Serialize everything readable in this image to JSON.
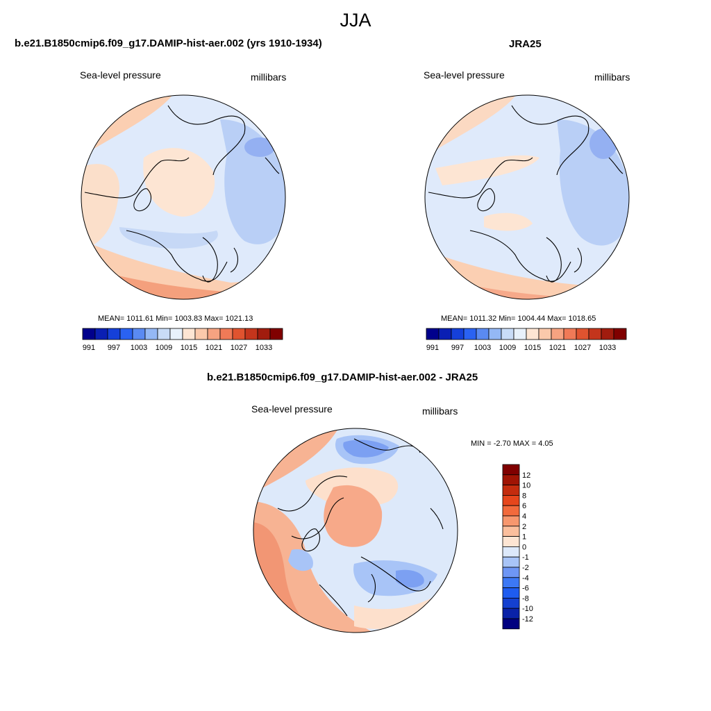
{
  "figure": {
    "season": "JJA"
  },
  "panels": [
    {
      "id": "model",
      "title": "b.e21.B1850cmip6.f09_g17.DAMIP-hist-aer.002 (yrs 1910-1934)",
      "left_label": "Sea-level pressure",
      "right_label": "millibars",
      "stats": "MEAN= 1011.61  Min= 1003.83  Max= 1021.13"
    },
    {
      "id": "obs",
      "title": "JRA25",
      "left_label": "Sea-level pressure",
      "right_label": "millibars",
      "stats": "MEAN= 1011.32  Min= 1004.44  Max= 1018.65"
    },
    {
      "id": "diff",
      "title": "b.e21.B1850cmip6.f09_g17.DAMIP-hist-aer.002 - JRA25",
      "left_label": "Sea-level pressure",
      "right_label": "millibars",
      "stats": "MIN =  -2.70 MAX =   4.05"
    }
  ],
  "colorbars": {
    "absolute": {
      "colors": [
        "#00008c",
        "#0a1fb3",
        "#1540d9",
        "#2a62f2",
        "#5a8af2",
        "#94b8f5",
        "#c9dcf7",
        "#e8f1fb",
        "#fde5d3",
        "#fbc9ab",
        "#f6a381",
        "#f07a57",
        "#e0532f",
        "#c4351c",
        "#a11c0e",
        "#800000"
      ],
      "tick_labels": [
        "991",
        "997",
        "1003",
        "1009",
        "1015",
        "1021",
        "1027",
        "1033"
      ]
    },
    "difference": {
      "colors": [
        "#000080",
        "#0a22a8",
        "#1440d0",
        "#1e5cf0",
        "#3c78f5",
        "#6e96f5",
        "#a8c4f7",
        "#dde9fa",
        "#fde5d3",
        "#fbbf9d",
        "#f7976e",
        "#f26a3c",
        "#e6461c",
        "#c42c0e",
        "#a01404",
        "#800000"
      ],
      "tick_labels": [
        "12",
        "10",
        "8",
        "6",
        "4",
        "2",
        "1",
        "0",
        "-1",
        "-2",
        "-4",
        "-6",
        "-8",
        "-10",
        "-12"
      ]
    }
  }
}
